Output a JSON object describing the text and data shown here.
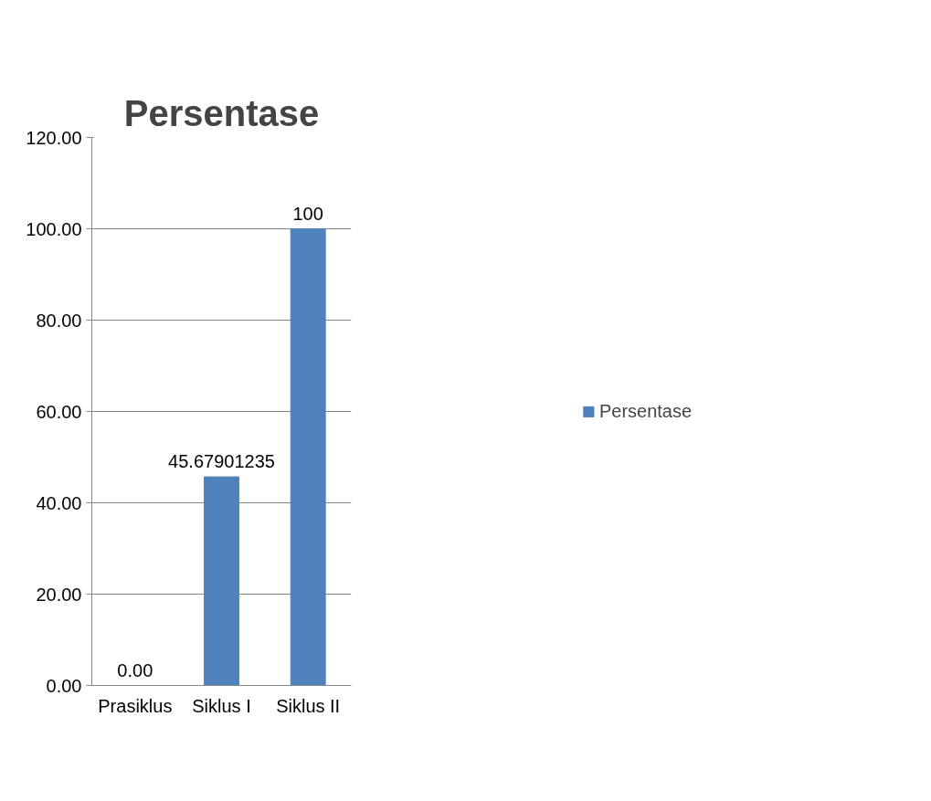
{
  "chart_data": {
    "type": "bar",
    "title": "Persentase",
    "categories": [
      "Prasiklus",
      "Siklus I",
      "Siklus II"
    ],
    "series": [
      {
        "name": "Persentase",
        "color": "#4f81bd",
        "values": [
          0,
          45.67901235,
          100
        ],
        "value_labels": [
          "0.00",
          "45.67901235",
          "100"
        ]
      }
    ],
    "ylim": [
      0,
      120
    ],
    "yticks": [
      {
        "value": 0,
        "label": "0.00"
      },
      {
        "value": 20,
        "label": "20.00"
      },
      {
        "value": 40,
        "label": "40.00"
      },
      {
        "value": 60,
        "label": "60.00"
      },
      {
        "value": 80,
        "label": "80.00"
      },
      {
        "value": 100,
        "label": "100.00"
      },
      {
        "value": 120,
        "label": "120.00"
      }
    ],
    "grid": "y",
    "legend": "right"
  }
}
